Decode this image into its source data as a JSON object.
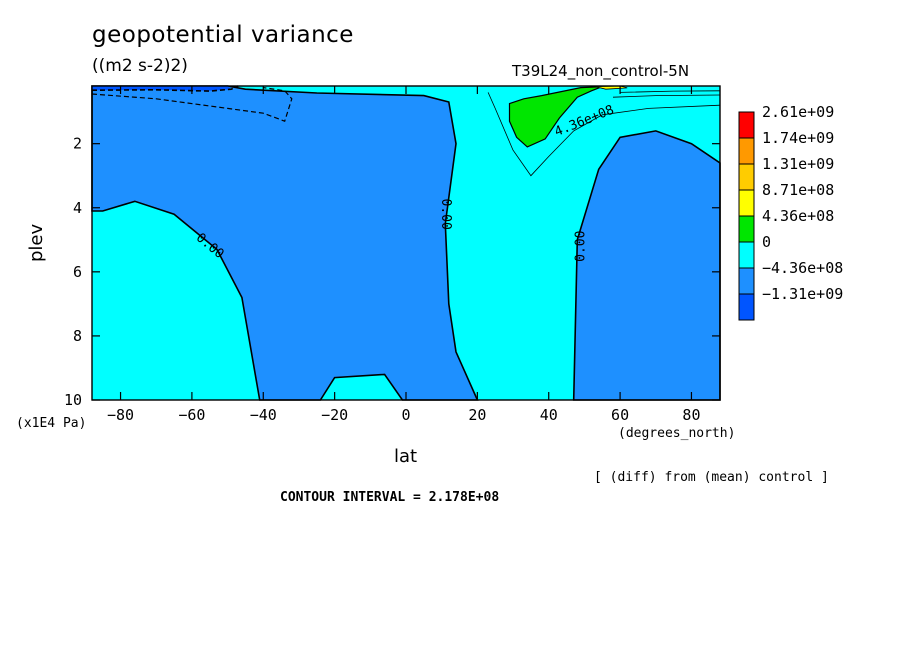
{
  "chart_data": {
    "type": "contour",
    "title": "geopotential variance",
    "units": "((m2 s-2)2)",
    "run_label": "T39L24_non_control-5N",
    "xlabel": "lat",
    "xunits": "(degrees_north)",
    "ylabel": "plev",
    "yunits": "(x1E4 Pa)",
    "xlim": [
      -88,
      88
    ],
    "ylim": [
      0.2,
      10
    ],
    "y_inverted": true,
    "xticks": [
      -80,
      -60,
      -40,
      -20,
      0,
      20,
      40,
      60,
      80
    ],
    "xtick_labels": [
      "−80",
      "−60",
      "−40",
      "−20",
      "0",
      "20",
      "40",
      "60",
      "80"
    ],
    "yticks": [
      2,
      4,
      6,
      8,
      10
    ],
    "ytick_labels": [
      "2",
      "4",
      "6",
      "8",
      "10"
    ],
    "contour_interval_label": "CONTOUR INTERVAL = 2.178E+08",
    "diff_note": "[ (diff) from (mean) control ]",
    "contour_labels": [
      {
        "text": "0.00",
        "lat": -55,
        "plev": 5.2,
        "angle": 40
      },
      {
        "text": "0.00",
        "lat": 11,
        "plev": 4.2,
        "angle": 90
      },
      {
        "text": "0.00",
        "lat": 49,
        "plev": 5.2,
        "angle": -90
      },
      {
        "text": "4.36e+08",
        "lat": 50,
        "plev": 1.3,
        "angle": -22
      }
    ],
    "legend": {
      "placement": "right",
      "levels": [
        {
          "label": "2.61e+09",
          "color": "#ff0000"
        },
        {
          "label": "1.74e+09",
          "color": "#ff9900"
        },
        {
          "label": "1.31e+09",
          "color": "#ffcc00"
        },
        {
          "label": "8.71e+08",
          "color": "#ffff00"
        },
        {
          "label": "4.36e+08",
          "color": "#00e600"
        },
        {
          "label": "0",
          "color": "#00ffff"
        },
        {
          "label": "−4.36e+08",
          "color": "#1e90ff"
        },
        {
          "label": "−1.31e+09",
          "color": "#0055ff"
        }
      ]
    },
    "regions": {
      "positive_color": "#00ffff",
      "negative_color": "#1e90ff",
      "strong_negative_color": "#0055ff",
      "high_color": "#00e600",
      "extreme_color": "#ffff00",
      "negative_regions": [
        {
          "name": "upper-left",
          "points": [
            [
              -88,
              0.2
            ],
            [
              -50,
              0.2
            ],
            [
              -45,
              0.3
            ],
            [
              -25,
              0.42
            ],
            [
              5,
              0.5
            ],
            [
              12,
              0.7
            ],
            [
              14,
              2
            ],
            [
              11,
              4.5
            ],
            [
              12,
              7
            ],
            [
              14,
              8.5
            ],
            [
              20,
              10
            ],
            [
              -1,
              10
            ],
            [
              -6,
              9.2
            ],
            [
              -20,
              9.3
            ],
            [
              -24,
              10
            ],
            [
              -41,
              10
            ],
            [
              -46,
              6.8
            ],
            [
              -53,
              5.3
            ],
            [
              -65,
              4.2
            ],
            [
              -76,
              3.8
            ],
            [
              -85,
              4.1
            ],
            [
              -88,
              4.1
            ]
          ]
        },
        {
          "name": "right",
          "points": [
            [
              47,
              10
            ],
            [
              48,
              5
            ],
            [
              54,
              2.8
            ],
            [
              60,
              1.8
            ],
            [
              70,
              1.6
            ],
            [
              80,
              2
            ],
            [
              88,
              2.6
            ],
            [
              88,
              10
            ]
          ]
        }
      ],
      "strong_negative_regions": [
        {
          "name": "top-left-core",
          "points": [
            [
              -88,
              0.2
            ],
            [
              -50,
              0.2
            ],
            [
              -49,
              0.3
            ],
            [
              -55,
              0.35
            ],
            [
              -70,
              0.32
            ],
            [
              -88,
              0.33
            ]
          ]
        }
      ],
      "high_regions": [
        {
          "name": "green-wedge",
          "points": [
            [
              29,
              0.75
            ],
            [
              33,
              0.6
            ],
            [
              38,
              0.5
            ],
            [
              49,
              0.25
            ],
            [
              55,
              0.22
            ],
            [
              52,
              0.35
            ],
            [
              48,
              0.55
            ],
            [
              43,
              1.2
            ],
            [
              39,
              1.85
            ],
            [
              34,
              2.1
            ],
            [
              31,
              1.8
            ],
            [
              29,
              1.3
            ]
          ]
        }
      ],
      "extreme_regions": [
        {
          "name": "yellow-sliver",
          "points": [
            [
              53,
              0.22
            ],
            [
              60,
              0.2
            ],
            [
              62,
              0.26
            ],
            [
              56,
              0.3
            ]
          ]
        }
      ],
      "lines": [
        {
          "dashed": false,
          "width": 0.8,
          "points": [
            [
              23,
              0.4
            ],
            [
              25,
              0.9
            ],
            [
              30,
              2.2
            ],
            [
              35,
              3
            ],
            [
              40,
              2.4
            ],
            [
              47,
              1.6
            ],
            [
              55,
              1.1
            ],
            [
              68,
              0.9
            ],
            [
              88,
              0.8
            ]
          ]
        },
        {
          "dashed": false,
          "width": 0.8,
          "points": [
            [
              58,
              0.55
            ],
            [
              70,
              0.5
            ],
            [
              88,
              0.48
            ]
          ]
        },
        {
          "dashed": false,
          "width": 0.8,
          "points": [
            [
              60,
              0.4
            ],
            [
              75,
              0.36
            ],
            [
              88,
              0.35
            ]
          ]
        },
        {
          "dashed": true,
          "width": 1.2,
          "points": [
            [
              -88,
              0.45
            ],
            [
              -70,
              0.6
            ],
            [
              -50,
              0.9
            ],
            [
              -40,
              1.05
            ],
            [
              -34,
              1.3
            ],
            [
              -32,
              0.6
            ],
            [
              -34,
              0.35
            ],
            [
              -40,
              0.25
            ]
          ]
        },
        {
          "dashed": true,
          "width": 1.6,
          "points": [
            [
              -88,
              0.33
            ],
            [
              -70,
              0.32
            ],
            [
              -55,
              0.36
            ],
            [
              -49,
              0.3
            ],
            [
              -47,
              0.2
            ]
          ]
        }
      ]
    }
  }
}
